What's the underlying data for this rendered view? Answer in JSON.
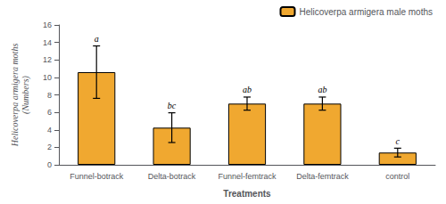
{
  "chart_data": {
    "type": "bar",
    "categories": [
      "Funnel-botrack",
      "Delta-botrack",
      "Funnel-femtrack",
      "Delta-femtrack",
      "control"
    ],
    "series": [
      {
        "name": "Helicoverpa armigera male moths",
        "color": "#F0A830",
        "values": [
          10.6,
          4.25,
          7.0,
          7.0,
          1.4
        ],
        "errors": [
          3.0,
          1.7,
          0.75,
          0.75,
          0.5
        ]
      }
    ],
    "annotations": [
      "a",
      "bc",
      "ab",
      "ab",
      "c"
    ],
    "xlabel": "Treatments",
    "ylabel": "Helicoverpa armigera moths\n(Numbers)",
    "ylim": [
      0,
      16
    ],
    "yticks": [
      0,
      2,
      4,
      6,
      8,
      10,
      12,
      14,
      16
    ],
    "grid": false,
    "legend": "upper right"
  }
}
